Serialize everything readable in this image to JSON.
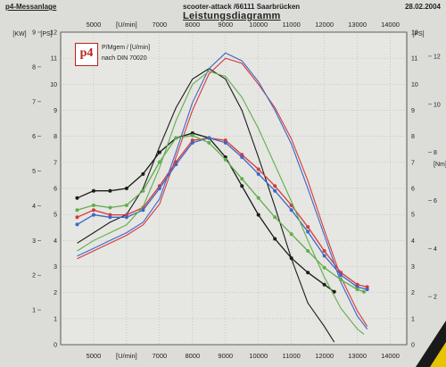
{
  "header": {
    "left": "p4-Messanlage",
    "center": "scooter-attack  /66111 Saarbrücken",
    "date": "28.02.2004",
    "title": "Leistungsdiagramm"
  },
  "logo": {
    "text": "p4"
  },
  "legend_text": {
    "line1": "P/Mgem / [U/min]",
    "line2": "nach DIN 70020"
  },
  "colors": {
    "black": "#1a1a1a",
    "red": "#d43a3a",
    "blue": "#3e66c8",
    "green": "#5fae4a",
    "grid": "#9a9a9a",
    "background": "#dcdcd8"
  },
  "chart_data": {
    "type": "line",
    "title": "Leistungsdiagramm",
    "xlabel": "[U/min]",
    "ylabel_left_kw": "[KW]",
    "ylabel_left_ps": "[PS]",
    "ylabel_right_ps": "[PS]",
    "ylabel_right_nm": "[Nm]",
    "xlim": [
      4000,
      14500
    ],
    "ylim_kw": [
      0,
      9
    ],
    "ylim_ps": [
      0,
      12
    ],
    "ylim_nm": [
      0,
      13
    ],
    "x_ticks": [
      5000,
      6000,
      7000,
      8000,
      9000,
      10000,
      11000,
      12000,
      13000,
      14000
    ],
    "x_axis_tick_texts": [
      "5000",
      "[U/min]",
      "7000",
      "8000",
      "9000",
      "10000",
      "11000",
      "12000",
      "13000",
      "14000"
    ],
    "kw_ticks": [
      "0",
      "1",
      "2",
      "3",
      "4",
      "5",
      "6",
      "7",
      "8",
      "9"
    ],
    "ps_ticks": [
      "0",
      "1",
      "2",
      "3",
      "4",
      "5",
      "6",
      "7",
      "8",
      "9",
      "10",
      "11",
      "12"
    ],
    "nm_ticks": [
      "0",
      "2",
      "4",
      "6",
      "8",
      "10",
      "12"
    ],
    "grid": true,
    "series": [
      {
        "color_key": "black",
        "kind": "power",
        "x": [
          4500,
          5000,
          5500,
          6000,
          6500,
          7000,
          7500,
          8000,
          8500,
          9000,
          9500,
          10000,
          10500,
          11000,
          11500,
          12000,
          12300
        ],
        "y": [
          3.9,
          4.3,
          4.7,
          5.0,
          6.0,
          7.6,
          9.1,
          10.2,
          10.6,
          10.2,
          9.0,
          7.2,
          5.3,
          3.3,
          1.6,
          0.7,
          0.1
        ]
      },
      {
        "color_key": "black",
        "kind": "torque",
        "x": [
          4500,
          5000,
          5500,
          6000,
          6500,
          7000,
          7500,
          8000,
          8500,
          9000,
          9500,
          10000,
          10500,
          11000,
          11500,
          12000,
          12300
        ],
        "y": [
          6.1,
          6.4,
          6.4,
          6.5,
          7.1,
          8.0,
          8.6,
          8.8,
          8.6,
          7.8,
          6.6,
          5.4,
          4.4,
          3.6,
          3.0,
          2.5,
          2.2
        ]
      },
      {
        "color_key": "red",
        "kind": "power",
        "x": [
          4500,
          5000,
          5500,
          6000,
          6500,
          7000,
          7500,
          8000,
          8500,
          9000,
          9500,
          10000,
          10500,
          11000,
          11500,
          12000,
          12500,
          13000,
          13300
        ],
        "y": [
          3.3,
          3.6,
          3.9,
          4.2,
          4.6,
          5.4,
          7.2,
          9.0,
          10.4,
          11.0,
          10.8,
          10.0,
          9.1,
          7.9,
          6.3,
          4.4,
          2.6,
          1.3,
          0.7
        ]
      },
      {
        "color_key": "red",
        "kind": "torque",
        "x": [
          4500,
          5000,
          5500,
          6000,
          6500,
          7000,
          7500,
          8000,
          8500,
          9000,
          9500,
          10000,
          10500,
          11000,
          11500,
          12000,
          12500,
          13000,
          13300
        ],
        "y": [
          5.3,
          5.6,
          5.4,
          5.4,
          5.7,
          6.6,
          7.6,
          8.5,
          8.6,
          8.5,
          7.9,
          7.3,
          6.6,
          5.8,
          4.9,
          3.9,
          3.0,
          2.5,
          2.4
        ]
      },
      {
        "color_key": "blue",
        "kind": "power",
        "x": [
          4500,
          5000,
          5500,
          6000,
          6500,
          7000,
          7500,
          8000,
          8500,
          9000,
          9500,
          10000,
          10500,
          11000,
          11500,
          12000,
          12500,
          13000,
          13300
        ],
        "y": [
          3.4,
          3.7,
          4.0,
          4.3,
          4.7,
          5.6,
          7.4,
          9.3,
          10.6,
          11.2,
          10.9,
          10.1,
          9.0,
          7.7,
          6.0,
          4.2,
          2.4,
          1.1,
          0.6
        ]
      },
      {
        "color_key": "blue",
        "kind": "torque",
        "x": [
          4500,
          5000,
          5500,
          6000,
          6500,
          7000,
          7500,
          8000,
          8500,
          9000,
          9500,
          10000,
          10500,
          11000,
          11500,
          12000,
          12500,
          13000,
          13300
        ],
        "y": [
          5.0,
          5.4,
          5.3,
          5.3,
          5.6,
          6.5,
          7.5,
          8.4,
          8.6,
          8.4,
          7.8,
          7.1,
          6.4,
          5.6,
          4.7,
          3.7,
          2.9,
          2.4,
          2.3
        ]
      },
      {
        "color_key": "green",
        "kind": "power",
        "x": [
          4500,
          5000,
          5500,
          6000,
          6500,
          7000,
          7500,
          8000,
          8500,
          9000,
          9500,
          10000,
          10500,
          11000,
          11500,
          12000,
          12500,
          13000,
          13200
        ],
        "y": [
          3.6,
          4.0,
          4.3,
          4.6,
          5.3,
          6.8,
          8.6,
          10.0,
          10.5,
          10.3,
          9.5,
          8.3,
          6.9,
          5.5,
          4.0,
          2.6,
          1.4,
          0.6,
          0.4
        ]
      },
      {
        "color_key": "green",
        "kind": "torque",
        "x": [
          4500,
          5000,
          5500,
          6000,
          6500,
          7000,
          7500,
          8000,
          8500,
          9000,
          9500,
          10000,
          10500,
          11000,
          11500,
          12000,
          12500,
          13000,
          13200
        ],
        "y": [
          5.6,
          5.8,
          5.7,
          5.8,
          6.4,
          7.6,
          8.6,
          8.7,
          8.4,
          7.7,
          6.9,
          6.1,
          5.3,
          4.6,
          3.9,
          3.2,
          2.7,
          2.3,
          2.2
        ]
      }
    ]
  }
}
